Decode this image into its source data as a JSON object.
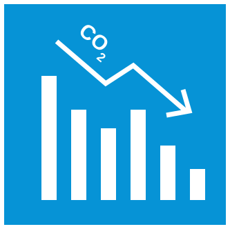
{
  "icon": {
    "name": "co2-reduction-chart-icon",
    "label_main": "CO",
    "label_sub": "2",
    "colors": {
      "background": "#0693d6",
      "foreground": "#ffffff",
      "border": "#ffffff"
    },
    "bars_relative_heights": [
      1.0,
      0.73,
      0.58,
      0.73,
      0.44,
      0.25
    ],
    "trend": "decreasing"
  }
}
